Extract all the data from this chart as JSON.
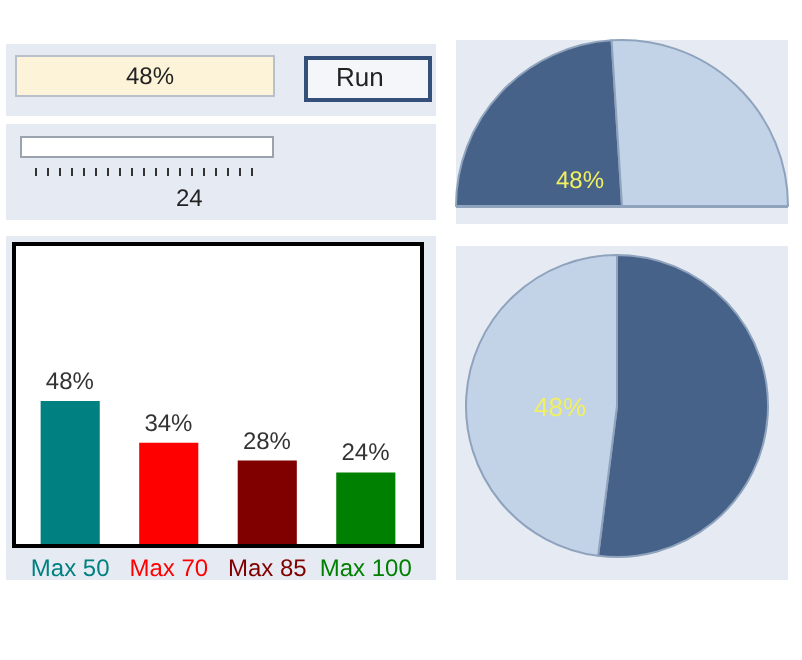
{
  "chart_data": [
    {
      "type": "other",
      "annotations": [
        "48%",
        "Run",
        "24"
      ]
    },
    {
      "type": "bar",
      "categories": [
        "Max 50",
        "Max 70",
        "Max 85",
        "Max 100"
      ],
      "values": [
        48,
        34,
        28,
        24
      ],
      "colors": [
        "#008080",
        "#ff0000",
        "#800000",
        "#008000"
      ],
      "value_labels": [
        "48%",
        "34%",
        "28%",
        "24%"
      ],
      "ylim": [
        0,
        100
      ],
      "tick_labels": "x"
    },
    {
      "type": "pie",
      "categories": [
        null,
        null
      ],
      "values": [
        48,
        52
      ],
      "colors": [
        "#476289",
        "#c2d3e8"
      ],
      "value_labels": [
        "48%",
        null
      ]
    },
    {
      "type": "pie",
      "categories": [
        null,
        null
      ],
      "values": [
        52,
        48
      ],
      "colors": [
        "#476289",
        "#c2d3e8"
      ],
      "value_labels": [
        null,
        "48%"
      ]
    }
  ]
}
